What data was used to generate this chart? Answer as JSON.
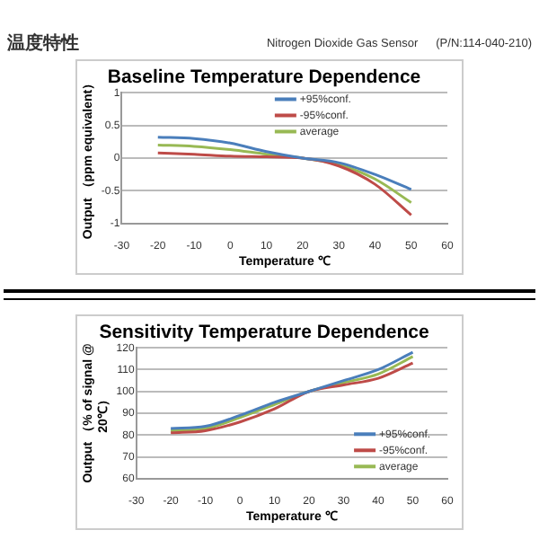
{
  "chart_data": [
    {
      "type": "line",
      "title": "Baseline Temperature Dependence",
      "xlabel": "Temperature ℃",
      "ylabel": "Output （ppm equivalent）",
      "annotations": [
        "温度特性",
        "Nitrogen Dioxide Gas Sensor",
        "(P/N:114-040-210)"
      ],
      "x": [
        -20,
        -10,
        0,
        10,
        20,
        30,
        40,
        50
      ],
      "series": [
        {
          "name": "+95%conf.",
          "color": "#4a7ebb",
          "values": [
            0.32,
            0.3,
            0.23,
            0.1,
            0.0,
            -0.07,
            -0.25,
            -0.48
          ]
        },
        {
          "name": "-95%conf.",
          "color": "#be4b48",
          "values": [
            0.08,
            0.06,
            0.03,
            0.02,
            0.0,
            -0.12,
            -0.4,
            -0.87
          ]
        },
        {
          "name": "average",
          "color": "#98b954",
          "values": [
            0.2,
            0.18,
            0.13,
            0.06,
            0.0,
            -0.1,
            -0.32,
            -0.68
          ]
        }
      ],
      "xlim": [
        -30,
        60
      ],
      "xticks": [
        -30,
        -20,
        -10,
        0,
        10,
        20,
        30,
        40,
        50,
        60
      ],
      "ylim": [
        -1,
        1
      ],
      "yticks": [
        -1,
        -0.5,
        0,
        0.5,
        1
      ],
      "grid": "y",
      "legend": "top"
    },
    {
      "type": "line",
      "title": "Sensitivity Temperature Dependence",
      "xlabel": "Temperature ℃",
      "ylabel": "Output （% of signal @ 20℃）",
      "x": [
        -20,
        -10,
        0,
        10,
        20,
        30,
        40,
        50
      ],
      "series": [
        {
          "name": "+95%conf.",
          "color": "#4a7ebb",
          "values": [
            83,
            84,
            89,
            95,
            100,
            105,
            110,
            118
          ]
        },
        {
          "name": "-95%conf.",
          "color": "#be4b48",
          "values": [
            81,
            82,
            86,
            92,
            100,
            103,
            106,
            113
          ]
        },
        {
          "name": "average",
          "color": "#98b954",
          "values": [
            82,
            83,
            88,
            94,
            100,
            104,
            108,
            116
          ]
        }
      ],
      "xlim": [
        -30,
        60
      ],
      "xticks": [
        -30,
        -20,
        -10,
        0,
        10,
        20,
        30,
        40,
        50,
        60
      ],
      "ylim": [
        60,
        120
      ],
      "yticks": [
        60,
        70,
        80,
        90,
        100,
        110,
        120
      ],
      "grid": "y",
      "legend": "bottom right"
    }
  ]
}
